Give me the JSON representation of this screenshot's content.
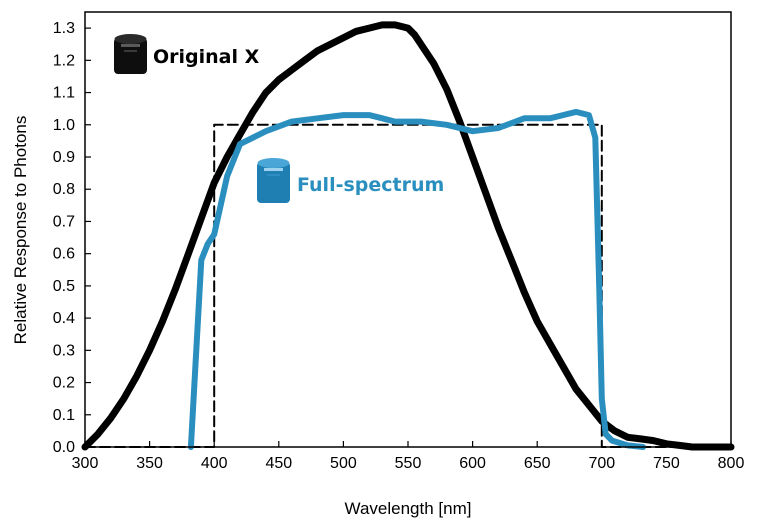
{
  "chart_data": {
    "type": "line",
    "title": "",
    "xlabel": "Wavelength [nm]",
    "ylabel": "Relative Response to Photons",
    "xlim": [
      300,
      800
    ],
    "ylim": [
      0,
      1.35
    ],
    "xticks": [
      300,
      350,
      400,
      450,
      500,
      550,
      600,
      650,
      700,
      750,
      800
    ],
    "yticks": [
      "0.0",
      "0.1",
      "0.2",
      "0.3",
      "0.4",
      "0.5",
      "0.6",
      "0.7",
      "0.8",
      "0.9",
      "1.0",
      "1.1",
      "1.2",
      "1.3"
    ],
    "grid": false,
    "series": [
      {
        "name": "Original X",
        "color": "#000000",
        "style": "solid",
        "icon": "black-sensor-icon",
        "x": [
          300,
          310,
          320,
          330,
          340,
          350,
          360,
          370,
          380,
          390,
          400,
          410,
          420,
          430,
          440,
          450,
          460,
          470,
          480,
          490,
          500,
          510,
          520,
          530,
          540,
          550,
          555,
          560,
          570,
          580,
          590,
          600,
          610,
          620,
          630,
          640,
          650,
          660,
          670,
          680,
          690,
          700,
          710,
          720,
          730,
          740,
          750,
          760,
          770,
          780,
          800
        ],
        "y": [
          0.0,
          0.04,
          0.09,
          0.15,
          0.22,
          0.3,
          0.39,
          0.49,
          0.6,
          0.71,
          0.82,
          0.9,
          0.97,
          1.04,
          1.1,
          1.14,
          1.17,
          1.2,
          1.23,
          1.25,
          1.27,
          1.29,
          1.3,
          1.31,
          1.31,
          1.3,
          1.28,
          1.25,
          1.19,
          1.11,
          1.01,
          0.9,
          0.79,
          0.68,
          0.58,
          0.48,
          0.39,
          0.32,
          0.25,
          0.18,
          0.13,
          0.08,
          0.05,
          0.03,
          0.025,
          0.02,
          0.01,
          0.005,
          0.0,
          0.0,
          0.0
        ]
      },
      {
        "name": "Full-spectrum",
        "color": "#2a8fbf",
        "style": "solid",
        "icon": "blue-sensor-icon",
        "x": [
          382,
          390,
          395,
          400,
          410,
          420,
          440,
          460,
          480,
          500,
          520,
          530,
          540,
          560,
          580,
          600,
          620,
          640,
          660,
          670,
          680,
          690,
          695,
          698,
          700,
          703,
          708,
          720,
          732
        ],
        "y": [
          0.0,
          0.58,
          0.63,
          0.66,
          0.84,
          0.94,
          0.98,
          1.01,
          1.02,
          1.03,
          1.03,
          1.02,
          1.01,
          1.01,
          1.0,
          0.98,
          0.99,
          1.02,
          1.02,
          1.03,
          1.04,
          1.03,
          0.96,
          0.5,
          0.15,
          0.04,
          0.02,
          0.005,
          0.0
        ]
      },
      {
        "name": "",
        "color": "#000000",
        "style": "dashed",
        "x": [
          300,
          400,
          400,
          700,
          700,
          800
        ],
        "y": [
          0.0,
          0.0,
          1.0,
          1.0,
          0.0,
          0.0
        ]
      }
    ],
    "annotations": [
      {
        "text": "Original X",
        "color": "#000000"
      },
      {
        "text": "Full-spectrum",
        "color": "#2a8fbf"
      }
    ]
  }
}
